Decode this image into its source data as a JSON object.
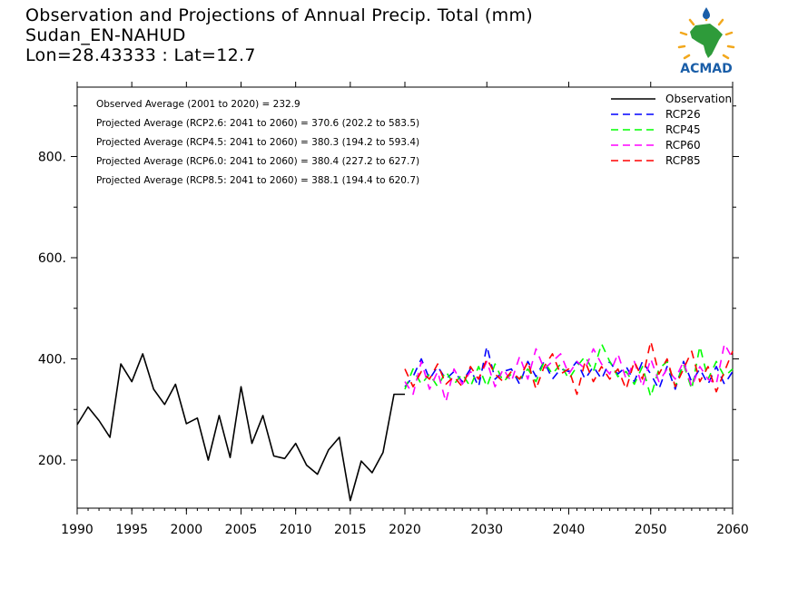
{
  "header": {
    "line1": "Observation and Projections of Annual Precip. Total (mm)",
    "line2": "Sudan_EN-NAHUD",
    "line3": "Lon=28.43333 : Lat=12.7"
  },
  "logo": {
    "text": "ACMAD"
  },
  "annotations": [
    "Observed Average (2001 to 2020) = 232.9",
    "Projected Average (RCP2.6: 2041 to 2060) = 370.6 (202.2 to 583.5)",
    "Projected Average (RCP4.5: 2041 to 2060) = 380.3 (194.2 to 593.4)",
    "Projected Average (RCP6.0: 2041 to 2060) = 380.4 (227.2 to 627.7)",
    "Projected Average (RCP8.5: 2041 to 2060) = 388.1 (194.4 to 620.7)"
  ],
  "chart_data": {
    "type": "line",
    "title": "Observation and Projections of Annual Precip. Total (mm)",
    "xlabel": "",
    "ylabel": "",
    "xlim": [
      1990,
      2060
    ],
    "ylim": [
      100,
      920
    ],
    "x_ticks": [
      1990,
      1995,
      2000,
      2005,
      2010,
      2015,
      2020,
      2030,
      2040,
      2050,
      2060
    ],
    "y_ticks": [
      200,
      400,
      600,
      800
    ],
    "y_tick_labels": [
      "200.",
      "400.",
      "600.",
      "800."
    ],
    "legend_placement": "top-right",
    "grid": false,
    "series": [
      {
        "name": "Observation",
        "color": "#000000",
        "dash": "solid",
        "x": [
          1990,
          1991,
          1992,
          1993,
          1994,
          1995,
          1996,
          1997,
          1998,
          1999,
          2000,
          2001,
          2002,
          2003,
          2004,
          2005,
          2006,
          2007,
          2008,
          2009,
          2010,
          2011,
          2012,
          2013,
          2014,
          2015,
          2016,
          2017,
          2018,
          2019,
          2020
        ],
        "values": [
          270,
          305,
          278,
          245,
          390,
          355,
          410,
          340,
          310,
          350,
          272,
          283,
          200,
          288,
          205,
          345,
          233,
          288,
          208,
          203,
          233,
          190,
          172,
          220,
          245,
          120,
          198,
          175,
          215,
          330,
          330
        ]
      },
      {
        "name": "RCP26",
        "color": "#0000ff",
        "dash": "dashed",
        "x": [
          2020,
          2021,
          2022,
          2023,
          2024,
          2025,
          2026,
          2027,
          2028,
          2029,
          2030,
          2031,
          2032,
          2033,
          2034,
          2035,
          2036,
          2037,
          2038,
          2039,
          2040,
          2041,
          2042,
          2043,
          2044,
          2045,
          2046,
          2047,
          2048,
          2049,
          2050,
          2051,
          2052,
          2053,
          2054,
          2055,
          2056,
          2057,
          2058,
          2059,
          2060
        ],
        "values": [
          345,
          365,
          400,
          360,
          385,
          360,
          375,
          355,
          380,
          345,
          425,
          360,
          375,
          380,
          350,
          395,
          365,
          395,
          360,
          380,
          375,
          395,
          360,
          385,
          360,
          395,
          370,
          385,
          355,
          395,
          370,
          340,
          385,
          340,
          395,
          355,
          380,
          350,
          385,
          350,
          375
        ]
      },
      {
        "name": "RCP45",
        "color": "#00ff00",
        "dash": "dashed",
        "x": [
          2020,
          2021,
          2022,
          2023,
          2024,
          2025,
          2026,
          2027,
          2028,
          2029,
          2030,
          2031,
          2032,
          2033,
          2034,
          2035,
          2036,
          2037,
          2038,
          2039,
          2040,
          2041,
          2042,
          2043,
          2044,
          2045,
          2046,
          2047,
          2048,
          2049,
          2050,
          2051,
          2052,
          2053,
          2054,
          2055,
          2056,
          2057,
          2058,
          2059,
          2060
        ],
        "values": [
          340,
          380,
          350,
          370,
          345,
          375,
          350,
          370,
          345,
          385,
          345,
          390,
          355,
          370,
          360,
          380,
          355,
          395,
          370,
          390,
          360,
          385,
          405,
          375,
          430,
          395,
          365,
          375,
          350,
          385,
          325,
          380,
          395,
          345,
          390,
          340,
          425,
          360,
          395,
          365,
          380
        ]
      },
      {
        "name": "RCP60",
        "color": "#ff00ff",
        "dash": "dashed",
        "x": [
          2020,
          2021,
          2022,
          2023,
          2024,
          2025,
          2026,
          2027,
          2028,
          2029,
          2030,
          2031,
          2032,
          2033,
          2034,
          2035,
          2036,
          2037,
          2038,
          2039,
          2040,
          2041,
          2042,
          2043,
          2044,
          2045,
          2046,
          2047,
          2048,
          2049,
          2050,
          2051,
          2052,
          2053,
          2054,
          2055,
          2056,
          2057,
          2058,
          2059,
          2060
        ],
        "values": [
          355,
          330,
          395,
          340,
          375,
          315,
          380,
          350,
          375,
          360,
          395,
          345,
          380,
          355,
          405,
          360,
          420,
          380,
          395,
          410,
          370,
          395,
          380,
          420,
          390,
          370,
          410,
          360,
          395,
          345,
          400,
          355,
          380,
          360,
          395,
          345,
          385,
          360,
          350,
          430,
          400
        ]
      },
      {
        "name": "RCP85",
        "color": "#ff0000",
        "dash": "dashed",
        "x": [
          2020,
          2021,
          2022,
          2023,
          2024,
          2025,
          2026,
          2027,
          2028,
          2029,
          2030,
          2031,
          2032,
          2033,
          2034,
          2035,
          2036,
          2037,
          2038,
          2039,
          2040,
          2041,
          2042,
          2043,
          2044,
          2045,
          2046,
          2047,
          2048,
          2049,
          2050,
          2051,
          2052,
          2053,
          2054,
          2055,
          2056,
          2057,
          2058,
          2059,
          2060
        ],
        "values": [
          380,
          345,
          375,
          360,
          390,
          350,
          365,
          345,
          385,
          360,
          400,
          370,
          355,
          375,
          360,
          395,
          340,
          385,
          410,
          370,
          380,
          330,
          395,
          355,
          385,
          360,
          380,
          340,
          395,
          360,
          435,
          370,
          400,
          345,
          380,
          415,
          355,
          385,
          335,
          375,
          415
        ]
      }
    ]
  }
}
